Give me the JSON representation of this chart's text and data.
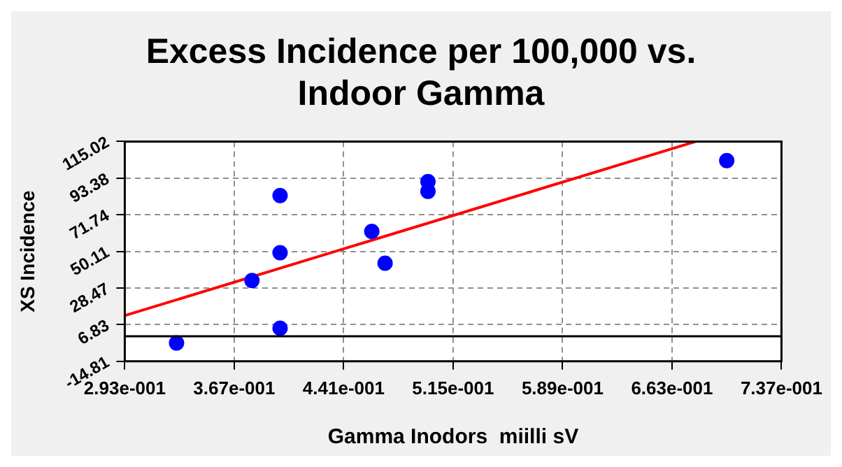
{
  "chart_data": {
    "type": "scatter",
    "title": "Excess Incidence per 100,000 vs. Indoor Gamma",
    "xlabel": "Gamma Inodors  miilli sV",
    "ylabel": "XS Incidence",
    "x": [
      0.328,
      0.379,
      0.398,
      0.398,
      0.398,
      0.46,
      0.469,
      0.498,
      0.498,
      0.7
    ],
    "series": [
      {
        "marker": "circle",
        "color": "#0000ff",
        "values": [
          -4.0,
          32.9,
          83.1,
          49.3,
          4.7,
          61.9,
          43.1,
          91.3,
          85.6,
          103.7
        ]
      },
      {
        "type": "line",
        "marker": "none",
        "line_style": "solid",
        "color": "#ff0000",
        "x": [
          0.293,
          0.679
        ],
        "values": [
          12.2,
          115
        ]
      }
    ],
    "xlim": [
      0.293,
      0.737
    ],
    "xticks": [
      {
        "value": 0.293,
        "label": "2.93e-001"
      },
      {
        "value": 0.367,
        "label": "3.67e-001"
      },
      {
        "value": 0.441,
        "label": "4.41e-001"
      },
      {
        "value": 0.515,
        "label": "5.15e-001"
      },
      {
        "value": 0.589,
        "label": "5.89e-001"
      },
      {
        "value": 0.663,
        "label": "6.63e-001"
      },
      {
        "value": 0.737,
        "label": "7.37e-001"
      }
    ],
    "ylim": [
      -14.81,
      115.02
    ],
    "yticks": [
      -14.81,
      6.83,
      28.47,
      50.11,
      71.74,
      93.38,
      115.02
    ],
    "ref_lines": [
      {
        "axis": "y",
        "value": 0,
        "color": "#000000"
      }
    ],
    "grid": true,
    "legend": false
  }
}
